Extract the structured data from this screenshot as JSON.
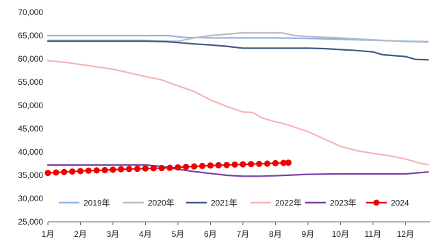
{
  "chart_data": {
    "type": "line",
    "title": "",
    "xlabel": "",
    "ylabel": "",
    "ylim": [
      25000,
      70000
    ],
    "y_ticks": [
      "25,000",
      "30,000",
      "35,000",
      "40,000",
      "45,000",
      "50,000",
      "55,000",
      "60,000",
      "65,000",
      "70,000"
    ],
    "x_ticks": [
      "1月",
      "2月",
      "3月",
      "4月",
      "5月",
      "6月",
      "7月",
      "8月",
      "9月",
      "10月",
      "11月",
      "12月"
    ],
    "grid": false,
    "legend_position": "bottom",
    "series": [
      {
        "name": "2019年",
        "color": "#8fb4e8",
        "marker": "none",
        "points": [
          [
            1,
            65000
          ],
          [
            2,
            65000
          ],
          [
            3,
            65000
          ],
          [
            4,
            65000
          ],
          [
            4.7,
            65000
          ],
          [
            5.2,
            64600
          ],
          [
            6,
            64500
          ],
          [
            7,
            64500
          ],
          [
            8,
            64500
          ],
          [
            9,
            64400
          ],
          [
            10,
            64200
          ],
          [
            11,
            64000
          ],
          [
            12,
            63800
          ],
          [
            12.7,
            63700
          ]
        ]
      },
      {
        "name": "2020年",
        "color": "#b6bcc4",
        "marker": "none",
        "points": [
          [
            1,
            64000
          ],
          [
            2,
            64000
          ],
          [
            3,
            64000
          ],
          [
            4,
            64000
          ],
          [
            5,
            63800
          ],
          [
            5.5,
            64500
          ],
          [
            6,
            65000
          ],
          [
            6.5,
            65300
          ],
          [
            7,
            65600
          ],
          [
            7.5,
            65600
          ],
          [
            8,
            65600
          ],
          [
            8.2,
            65600
          ],
          [
            8.6,
            65000
          ],
          [
            9,
            64800
          ],
          [
            10,
            64500
          ],
          [
            11,
            64100
          ],
          [
            12,
            63700
          ],
          [
            12.7,
            63600
          ]
        ]
      },
      {
        "name": "2021年",
        "color": "#3f5a84",
        "marker": "none",
        "points": [
          [
            1,
            63800
          ],
          [
            2,
            63800
          ],
          [
            3,
            63800
          ],
          [
            4,
            63800
          ],
          [
            4.6,
            63700
          ],
          [
            5,
            63500
          ],
          [
            5.5,
            63200
          ],
          [
            6,
            63000
          ],
          [
            6.5,
            62700
          ],
          [
            7,
            62300
          ],
          [
            8,
            62300
          ],
          [
            9,
            62300
          ],
          [
            9.5,
            62200
          ],
          [
            10,
            62000
          ],
          [
            10.5,
            61800
          ],
          [
            11,
            61500
          ],
          [
            11.3,
            60900
          ],
          [
            12,
            60500
          ],
          [
            12.3,
            59900
          ],
          [
            12.7,
            59800
          ]
        ]
      },
      {
        "name": "2022年",
        "color": "#f7b4b4",
        "marker": "none",
        "points": [
          [
            1,
            59600
          ],
          [
            1.5,
            59300
          ],
          [
            2,
            58800
          ],
          [
            2.5,
            58300
          ],
          [
            3,
            57800
          ],
          [
            3.5,
            57000
          ],
          [
            4,
            56200
          ],
          [
            4.5,
            55500
          ],
          [
            5,
            54200
          ],
          [
            5.5,
            53000
          ],
          [
            6,
            51200
          ],
          [
            6.5,
            49800
          ],
          [
            7,
            48600
          ],
          [
            7.3,
            48500
          ],
          [
            7.6,
            47300
          ],
          [
            8,
            46500
          ],
          [
            8.3,
            46000
          ],
          [
            8.6,
            45300
          ],
          [
            9,
            44400
          ],
          [
            9.5,
            42800
          ],
          [
            10,
            41200
          ],
          [
            10.5,
            40300
          ],
          [
            11,
            39700
          ],
          [
            11.5,
            39200
          ],
          [
            12,
            38500
          ],
          [
            12.5,
            37500
          ],
          [
            12.7,
            37300
          ]
        ]
      },
      {
        "name": "2023年",
        "color": "#7a3ea3",
        "marker": "none",
        "points": [
          [
            1,
            37200
          ],
          [
            2,
            37200
          ],
          [
            3,
            37200
          ],
          [
            4,
            37200
          ],
          [
            4.5,
            36900
          ],
          [
            5,
            36300
          ],
          [
            5.5,
            35800
          ],
          [
            6,
            35400
          ],
          [
            6.5,
            35000
          ],
          [
            7,
            34800
          ],
          [
            7.5,
            34800
          ],
          [
            8,
            34900
          ],
          [
            9,
            35200
          ],
          [
            10,
            35300
          ],
          [
            11,
            35300
          ],
          [
            12,
            35300
          ],
          [
            12.7,
            35700
          ]
        ]
      },
      {
        "name": "2024",
        "color": "#ee0000",
        "marker": "circle",
        "points": [
          [
            1,
            35500
          ],
          [
            1.25,
            35600
          ],
          [
            1.5,
            35700
          ],
          [
            1.75,
            35800
          ],
          [
            2,
            35900
          ],
          [
            2.25,
            36000
          ],
          [
            2.5,
            36050
          ],
          [
            2.75,
            36100
          ],
          [
            3,
            36200
          ],
          [
            3.25,
            36300
          ],
          [
            3.5,
            36350
          ],
          [
            3.75,
            36400
          ],
          [
            4,
            36450
          ],
          [
            4.25,
            36500
          ],
          [
            4.5,
            36550
          ],
          [
            4.75,
            36600
          ],
          [
            5,
            36700
          ],
          [
            5.25,
            36800
          ],
          [
            5.5,
            36900
          ],
          [
            5.75,
            37000
          ],
          [
            6,
            37100
          ],
          [
            6.25,
            37150
          ],
          [
            6.5,
            37200
          ],
          [
            6.75,
            37300
          ],
          [
            7,
            37350
          ],
          [
            7.25,
            37400
          ],
          [
            7.5,
            37450
          ],
          [
            7.75,
            37500
          ],
          [
            8,
            37600
          ],
          [
            8.25,
            37650
          ],
          [
            8.4,
            37700
          ]
        ]
      }
    ]
  }
}
